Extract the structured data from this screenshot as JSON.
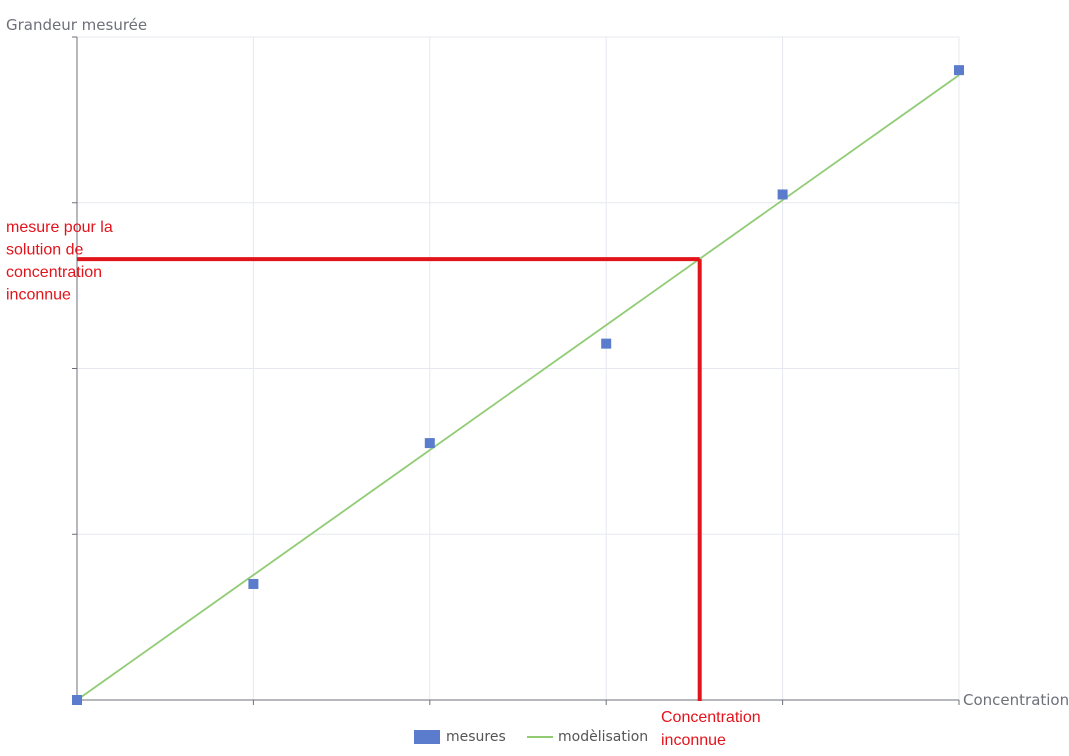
{
  "chart_data": {
    "type": "scatter",
    "ylabel": "Grandeur mesurée",
    "xlabel": "Concentration",
    "xlim": [
      0,
      5
    ],
    "ylim": [
      0,
      4
    ],
    "x_ticks": [
      0,
      1,
      2,
      3,
      4,
      5
    ],
    "y_ticks": [
      0,
      1,
      2,
      3,
      4
    ],
    "grid": true,
    "tick_labels_shown": false,
    "series": [
      {
        "name": "mesures",
        "kind": "scatter",
        "marker": "square",
        "color": "#5b7bcd",
        "points": [
          {
            "x": 0,
            "y": 0
          },
          {
            "x": 1,
            "y": 0.7
          },
          {
            "x": 2,
            "y": 1.55
          },
          {
            "x": 3,
            "y": 2.15
          },
          {
            "x": 4,
            "y": 3.05
          },
          {
            "x": 5,
            "y": 3.8
          }
        ]
      },
      {
        "name": "modèlisation",
        "kind": "line",
        "color": "#91cc75",
        "points": [
          {
            "x": 0,
            "y": 0
          },
          {
            "x": 5,
            "y": 3.77
          }
        ]
      }
    ],
    "unknown": {
      "x": 3.53,
      "y": 2.66,
      "color": "#e3131b",
      "y_annotation": [
        "mesure pour la",
        "solution de",
        "concentration",
        "inconnue"
      ],
      "x_annotation": [
        "Concentration",
        "inconnue"
      ]
    },
    "legend_position": "bottom-center"
  }
}
